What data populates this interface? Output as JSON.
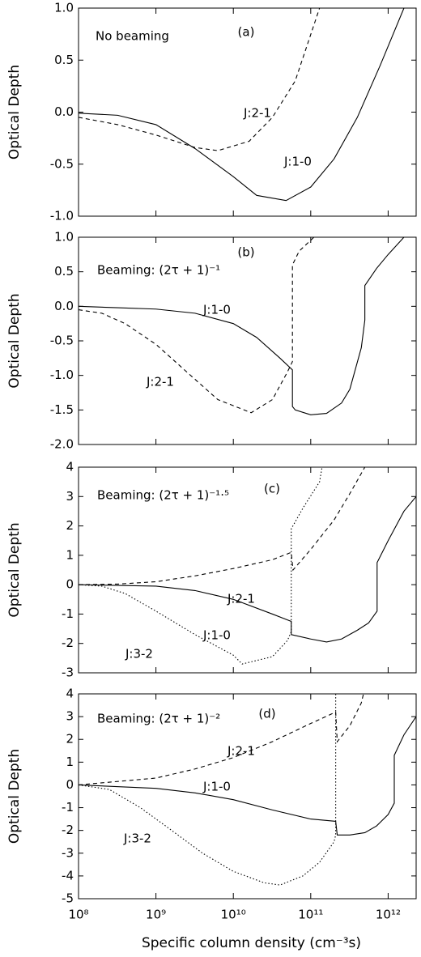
{
  "chart_data": [
    {
      "type": "line",
      "xscale": "log",
      "xlim": [
        100000000.0,
        2300000000000.0
      ],
      "xticks": [
        100000000.0,
        1000000000.0,
        10000000000.0,
        100000000000.0,
        1000000000000.0
      ],
      "ylim": [
        -1.0,
        1.0
      ],
      "yticks": [
        {
          "value": 1.0,
          "label": "1.0"
        },
        {
          "value": 0.5,
          "label": "0.5"
        },
        {
          "value": 0.0,
          "label": "0.0"
        },
        {
          "value": -0.5,
          "label": "-0.5"
        },
        {
          "value": -1.0,
          "label": "-1.0"
        }
      ],
      "ylabel": "Optical Depth",
      "annotations": [
        "No beaming",
        "(a)"
      ],
      "series": [
        {
          "name": "J:1-0",
          "color": "#000000",
          "style": "solid",
          "x": [
            100000000.0,
            320000000.0,
            1000000000.0,
            3200000000.0,
            10000000000.0,
            20000000000.0,
            48000000000.0,
            100000000000.0,
            200000000000.0,
            400000000000.0,
            790000000000.0,
            1600000000000.0
          ],
          "values": [
            -0.01,
            -0.03,
            -0.12,
            -0.35,
            -0.62,
            -0.8,
            -0.85,
            -0.72,
            -0.45,
            -0.05,
            0.45,
            1.0
          ]
        },
        {
          "name": "J:2-1",
          "color": "#000000",
          "style": "dashed",
          "x": [
            100000000.0,
            320000000.0,
            1000000000.0,
            3200000000.0,
            6300000000.0,
            16000000000.0,
            32000000000.0,
            63000000000.0,
            130000000000.0
          ],
          "values": [
            -0.05,
            -0.12,
            -0.22,
            -0.34,
            -0.37,
            -0.28,
            -0.05,
            0.3,
            1.0
          ]
        }
      ]
    },
    {
      "type": "line",
      "xscale": "log",
      "xlim": [
        100000000.0,
        2300000000000.0
      ],
      "xticks": [
        100000000.0,
        1000000000.0,
        10000000000.0,
        100000000000.0,
        1000000000000.0
      ],
      "ylim": [
        -2.0,
        1.0
      ],
      "yticks": [
        {
          "value": 1.0,
          "label": "1.0"
        },
        {
          "value": 0.5,
          "label": "0.5"
        },
        {
          "value": 0.0,
          "label": "0.0"
        },
        {
          "value": -0.5,
          "label": "-0.5"
        },
        {
          "value": -1.0,
          "label": "-1.0"
        },
        {
          "value": -1.5,
          "label": "-1.5"
        },
        {
          "value": -2.0,
          "label": "-2.0"
        }
      ],
      "ylabel": "Optical Depth",
      "annotations": [
        "Beaming: (2τ + 1)⁻¹",
        "(b)"
      ],
      "series": [
        {
          "name": "J:1-0",
          "color": "#000000",
          "style": "solid",
          "x": [
            100000000.0,
            320000000.0,
            1000000000.0,
            3200000000.0,
            10000000000.0,
            20000000000.0,
            40000000000.0,
            58000000000.0,
            58000000000.0,
            63000000000.0,
            100000000000.0,
            160000000000.0,
            250000000000.0,
            320000000000.0,
            450000000000.0,
            500000000000.0,
            500000000000.0,
            710000000000.0,
            1000000000000.0,
            1600000000000.0
          ],
          "values": [
            0,
            -0.02,
            -0.04,
            -0.1,
            -0.25,
            -0.45,
            -0.75,
            -0.92,
            -1.45,
            -1.5,
            -1.57,
            -1.55,
            -1.4,
            -1.2,
            -0.6,
            -0.2,
            0.3,
            0.55,
            0.75,
            1.0
          ]
        },
        {
          "name": "J:2-1",
          "color": "#000000",
          "style": "dashed",
          "x": [
            100000000.0,
            200000000.0,
            400000000.0,
            1000000000.0,
            2500000000.0,
            6300000000.0,
            17000000000.0,
            32000000000.0,
            50000000000.0,
            58000000000.0,
            58000000000.0,
            71000000000.0,
            110000000000.0
          ],
          "values": [
            -0.05,
            -0.1,
            -0.25,
            -0.55,
            -0.95,
            -1.35,
            -1.54,
            -1.35,
            -0.95,
            -0.8,
            0.6,
            0.8,
            1.0
          ]
        }
      ]
    },
    {
      "type": "line",
      "xscale": "log",
      "xlim": [
        100000000.0,
        2300000000000.0
      ],
      "xticks": [
        100000000.0,
        1000000000.0,
        10000000000.0,
        100000000000.0,
        1000000000000.0
      ],
      "ylim": [
        -3,
        4
      ],
      "yticks": [
        4,
        3,
        2,
        1,
        0,
        -1,
        -2,
        -3
      ],
      "ylabel": "Optical Depth",
      "annotations": [
        "Beaming: (2τ + 1)⁻¹·⁵",
        "(c)"
      ],
      "series": [
        {
          "name": "J:1-0",
          "color": "#000000",
          "style": "solid",
          "x": [
            100000000.0,
            1000000000.0,
            3200000000.0,
            10000000000.0,
            32000000000.0,
            56000000000.0,
            56000000000.0,
            100000000000.0,
            160000000000.0,
            250000000000.0,
            400000000000.0,
            560000000000.0,
            720000000000.0,
            720000000000.0,
            1000000000000.0,
            1600000000000.0,
            2300000000000.0
          ],
          "values": [
            0,
            -0.05,
            -0.2,
            -0.5,
            -1.0,
            -1.25,
            -1.7,
            -1.85,
            -1.95,
            -1.85,
            -1.55,
            -1.3,
            -0.9,
            0.75,
            1.5,
            2.5,
            3.0
          ]
        },
        {
          "name": "J:2-1",
          "color": "#000000",
          "style": "dashed",
          "x": [
            100000000.0,
            320000000.0,
            1000000000.0,
            3200000000.0,
            10000000000.0,
            32000000000.0,
            56000000000.0,
            59000000000.0,
            100000000000.0,
            200000000000.0,
            320000000000.0,
            500000000000.0
          ],
          "values": [
            0,
            0.02,
            0.1,
            0.3,
            0.55,
            0.85,
            1.1,
            0.5,
            1.2,
            2.2,
            3.1,
            4.0
          ]
        },
        {
          "name": "J:3-2",
          "color": "#000000",
          "style": "dotted",
          "x": [
            100000000.0,
            200000000.0,
            400000000.0,
            1000000000.0,
            3200000000.0,
            10000000000.0,
            13000000000.0,
            32000000000.0,
            50000000000.0,
            56000000000.0,
            56000000000.0,
            79000000000.0,
            130000000000.0,
            140000000000.0
          ],
          "values": [
            0,
            -0.05,
            -0.3,
            -0.9,
            -1.7,
            -2.4,
            -2.7,
            -2.45,
            -1.9,
            -1.6,
            1.9,
            2.6,
            3.5,
            4.0
          ]
        }
      ]
    },
    {
      "type": "line",
      "xscale": "log",
      "xlim": [
        100000000.0,
        2300000000000.0
      ],
      "xticks": [
        {
          "value": 100000000.0,
          "label": "10⁸"
        },
        {
          "value": 1000000000.0,
          "label": "10⁹"
        },
        {
          "value": 10000000000.0,
          "label": "10¹⁰"
        },
        {
          "value": 100000000000.0,
          "label": "10¹¹"
        },
        {
          "value": 1000000000000.0,
          "label": "10¹²"
        }
      ],
      "ylim": [
        -5,
        4
      ],
      "yticks": [
        4,
        3,
        2,
        1,
        0,
        -1,
        -2,
        -3,
        -4,
        -5
      ],
      "ylabel": "Optical Depth",
      "xlabel": "Specific column density (cm⁻³s)",
      "annotations": [
        "Beaming: (2τ + 1)⁻²",
        "(d)"
      ],
      "series": [
        {
          "name": "J:1-0",
          "color": "#000000",
          "style": "solid",
          "x": [
            100000000.0,
            1000000000.0,
            3200000000.0,
            10000000000.0,
            32000000000.0,
            100000000000.0,
            210000000000.0,
            220000000000.0,
            320000000000.0,
            500000000000.0,
            710000000000.0,
            1000000000000.0,
            1200000000000.0,
            1200000000000.0,
            1600000000000.0,
            2300000000000.0
          ],
          "values": [
            0,
            -0.15,
            -0.35,
            -0.65,
            -1.1,
            -1.5,
            -1.6,
            -2.2,
            -2.2,
            -2.1,
            -1.8,
            -1.3,
            -0.8,
            1.3,
            2.2,
            3.0
          ]
        },
        {
          "name": "J:2-1",
          "color": "#000000",
          "style": "dashed",
          "x": [
            100000000.0,
            1000000000.0,
            3200000000.0,
            10000000000.0,
            32000000000.0,
            100000000000.0,
            210000000000.0,
            220000000000.0,
            320000000000.0,
            450000000000.0,
            480000000000.0
          ],
          "values": [
            0,
            0.3,
            0.7,
            1.2,
            1.9,
            2.7,
            3.2,
            1.9,
            2.6,
            3.6,
            4.0
          ]
        },
        {
          "name": "J:3-2",
          "color": "#000000",
          "style": "dotted",
          "x": [
            100000000.0,
            250000000.0,
            630000000.0,
            1600000000.0,
            4000000000.0,
            10000000000.0,
            25000000000.0,
            40000000000.0,
            79000000000.0,
            130000000000.0,
            200000000000.0,
            210000000000.0,
            210000000000.0
          ],
          "values": [
            0,
            -0.2,
            -1.0,
            -2.0,
            -3.0,
            -3.8,
            -4.3,
            -4.4,
            -4.0,
            -3.4,
            -2.5,
            -2.2,
            4.0
          ]
        }
      ]
    }
  ]
}
